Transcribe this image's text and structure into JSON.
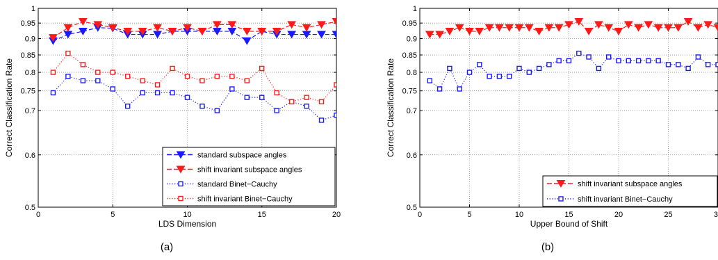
{
  "chart_data": [
    {
      "type": "line",
      "caption": "(a)",
      "xlabel": "LDS Dimension",
      "ylabel": "Correct Classification Rate",
      "xlim": [
        0,
        20
      ],
      "ylim": [
        0.5,
        1
      ],
      "yscale": "log",
      "xticks": [
        0,
        5,
        10,
        15,
        20
      ],
      "yticks": [
        0.5,
        0.6,
        0.7,
        0.75,
        0.8,
        0.85,
        0.9,
        0.95,
        1
      ],
      "ytick_labels": [
        "0.5",
        "0.6",
        "0.7",
        "0.75",
        "0.8",
        "0.85",
        "0.9",
        "0.95",
        "1"
      ],
      "grid": true,
      "legend_position": "bottom-right",
      "x": [
        1,
        2,
        3,
        4,
        5,
        6,
        7,
        8,
        9,
        10,
        11,
        12,
        13,
        14,
        15,
        16,
        17,
        18,
        19,
        20
      ],
      "series": [
        {
          "name": "standard subspace angles",
          "color": "#1a1aff",
          "marker": "triangle-down-filled",
          "linestyle": "dashed",
          "values": [
            0.893,
            0.913,
            0.923,
            0.935,
            0.933,
            0.913,
            0.913,
            0.913,
            0.923,
            0.923,
            0.923,
            0.923,
            0.923,
            0.893,
            0.923,
            0.913,
            0.913,
            0.913,
            0.913,
            0.913
          ]
        },
        {
          "name": "shift invariant subspace angles",
          "color": "#ff1a1a",
          "marker": "triangle-down-filled",
          "linestyle": "dashed",
          "values": [
            0.903,
            0.935,
            0.955,
            0.945,
            0.935,
            0.923,
            0.923,
            0.935,
            0.923,
            0.935,
            0.923,
            0.945,
            0.945,
            0.923,
            0.923,
            0.923,
            0.945,
            0.935,
            0.945,
            0.955
          ]
        },
        {
          "name": "standard Binet−Cauchy",
          "color": "#1a1aff",
          "marker": "square-open",
          "linestyle": "dotted",
          "values": [
            0.745,
            0.789,
            0.777,
            0.777,
            0.755,
            0.711,
            0.745,
            0.745,
            0.745,
            0.733,
            0.711,
            0.7,
            0.755,
            0.733,
            0.733,
            0.7,
            0.722,
            0.711,
            0.677,
            0.689
          ]
        },
        {
          "name": "shift invariant Binet−Cauchy",
          "color": "#ff1a1a",
          "marker": "square-open",
          "linestyle": "dotted",
          "values": [
            0.8,
            0.855,
            0.822,
            0.8,
            0.8,
            0.789,
            0.777,
            0.766,
            0.811,
            0.789,
            0.777,
            0.789,
            0.789,
            0.777,
            0.811,
            0.745,
            0.722,
            0.733,
            0.722,
            0.766
          ]
        }
      ]
    },
    {
      "type": "line",
      "caption": "(b)",
      "xlabel": "Upper Bound of Shift",
      "ylabel": "Correct Classification Rate",
      "xlim": [
        0,
        30
      ],
      "ylim": [
        0.5,
        1
      ],
      "yscale": "log",
      "xticks": [
        0,
        5,
        10,
        15,
        20,
        25,
        30
      ],
      "yticks": [
        0.5,
        0.6,
        0.7,
        0.75,
        0.8,
        0.85,
        0.9,
        0.95,
        1
      ],
      "ytick_labels": [
        "0.5",
        "0.6",
        "0.7",
        "0.75",
        "0.8",
        "0.85",
        "0.9",
        "0.95",
        "1"
      ],
      "grid": true,
      "legend_position": "bottom-right",
      "x": [
        1,
        2,
        3,
        4,
        5,
        6,
        7,
        8,
        9,
        10,
        11,
        12,
        13,
        14,
        15,
        16,
        17,
        18,
        19,
        20,
        21,
        22,
        23,
        24,
        25,
        26,
        27,
        28,
        29,
        30
      ],
      "series": [
        {
          "name": "shift invariant subspace angles",
          "color": "#ff1a1a",
          "marker": "triangle-down-filled",
          "linestyle": "dashed",
          "values": [
            0.913,
            0.913,
            0.923,
            0.935,
            0.923,
            0.923,
            0.935,
            0.935,
            0.935,
            0.935,
            0.935,
            0.923,
            0.935,
            0.935,
            0.945,
            0.955,
            0.923,
            0.945,
            0.935,
            0.923,
            0.945,
            0.935,
            0.945,
            0.935,
            0.935,
            0.935,
            0.955,
            0.935,
            0.945,
            0.935
          ]
        },
        {
          "name": "shift invariant Binet−Cauchy",
          "color": "#1a1aff",
          "marker": "square-open",
          "linestyle": "dotted",
          "values": [
            0.777,
            0.755,
            0.811,
            0.755,
            0.8,
            0.822,
            0.789,
            0.789,
            0.789,
            0.811,
            0.8,
            0.811,
            0.822,
            0.833,
            0.833,
            0.855,
            0.844,
            0.811,
            0.844,
            0.833,
            0.833,
            0.833,
            0.833,
            0.833,
            0.822,
            0.822,
            0.811,
            0.844,
            0.822,
            0.822
          ]
        }
      ]
    }
  ]
}
